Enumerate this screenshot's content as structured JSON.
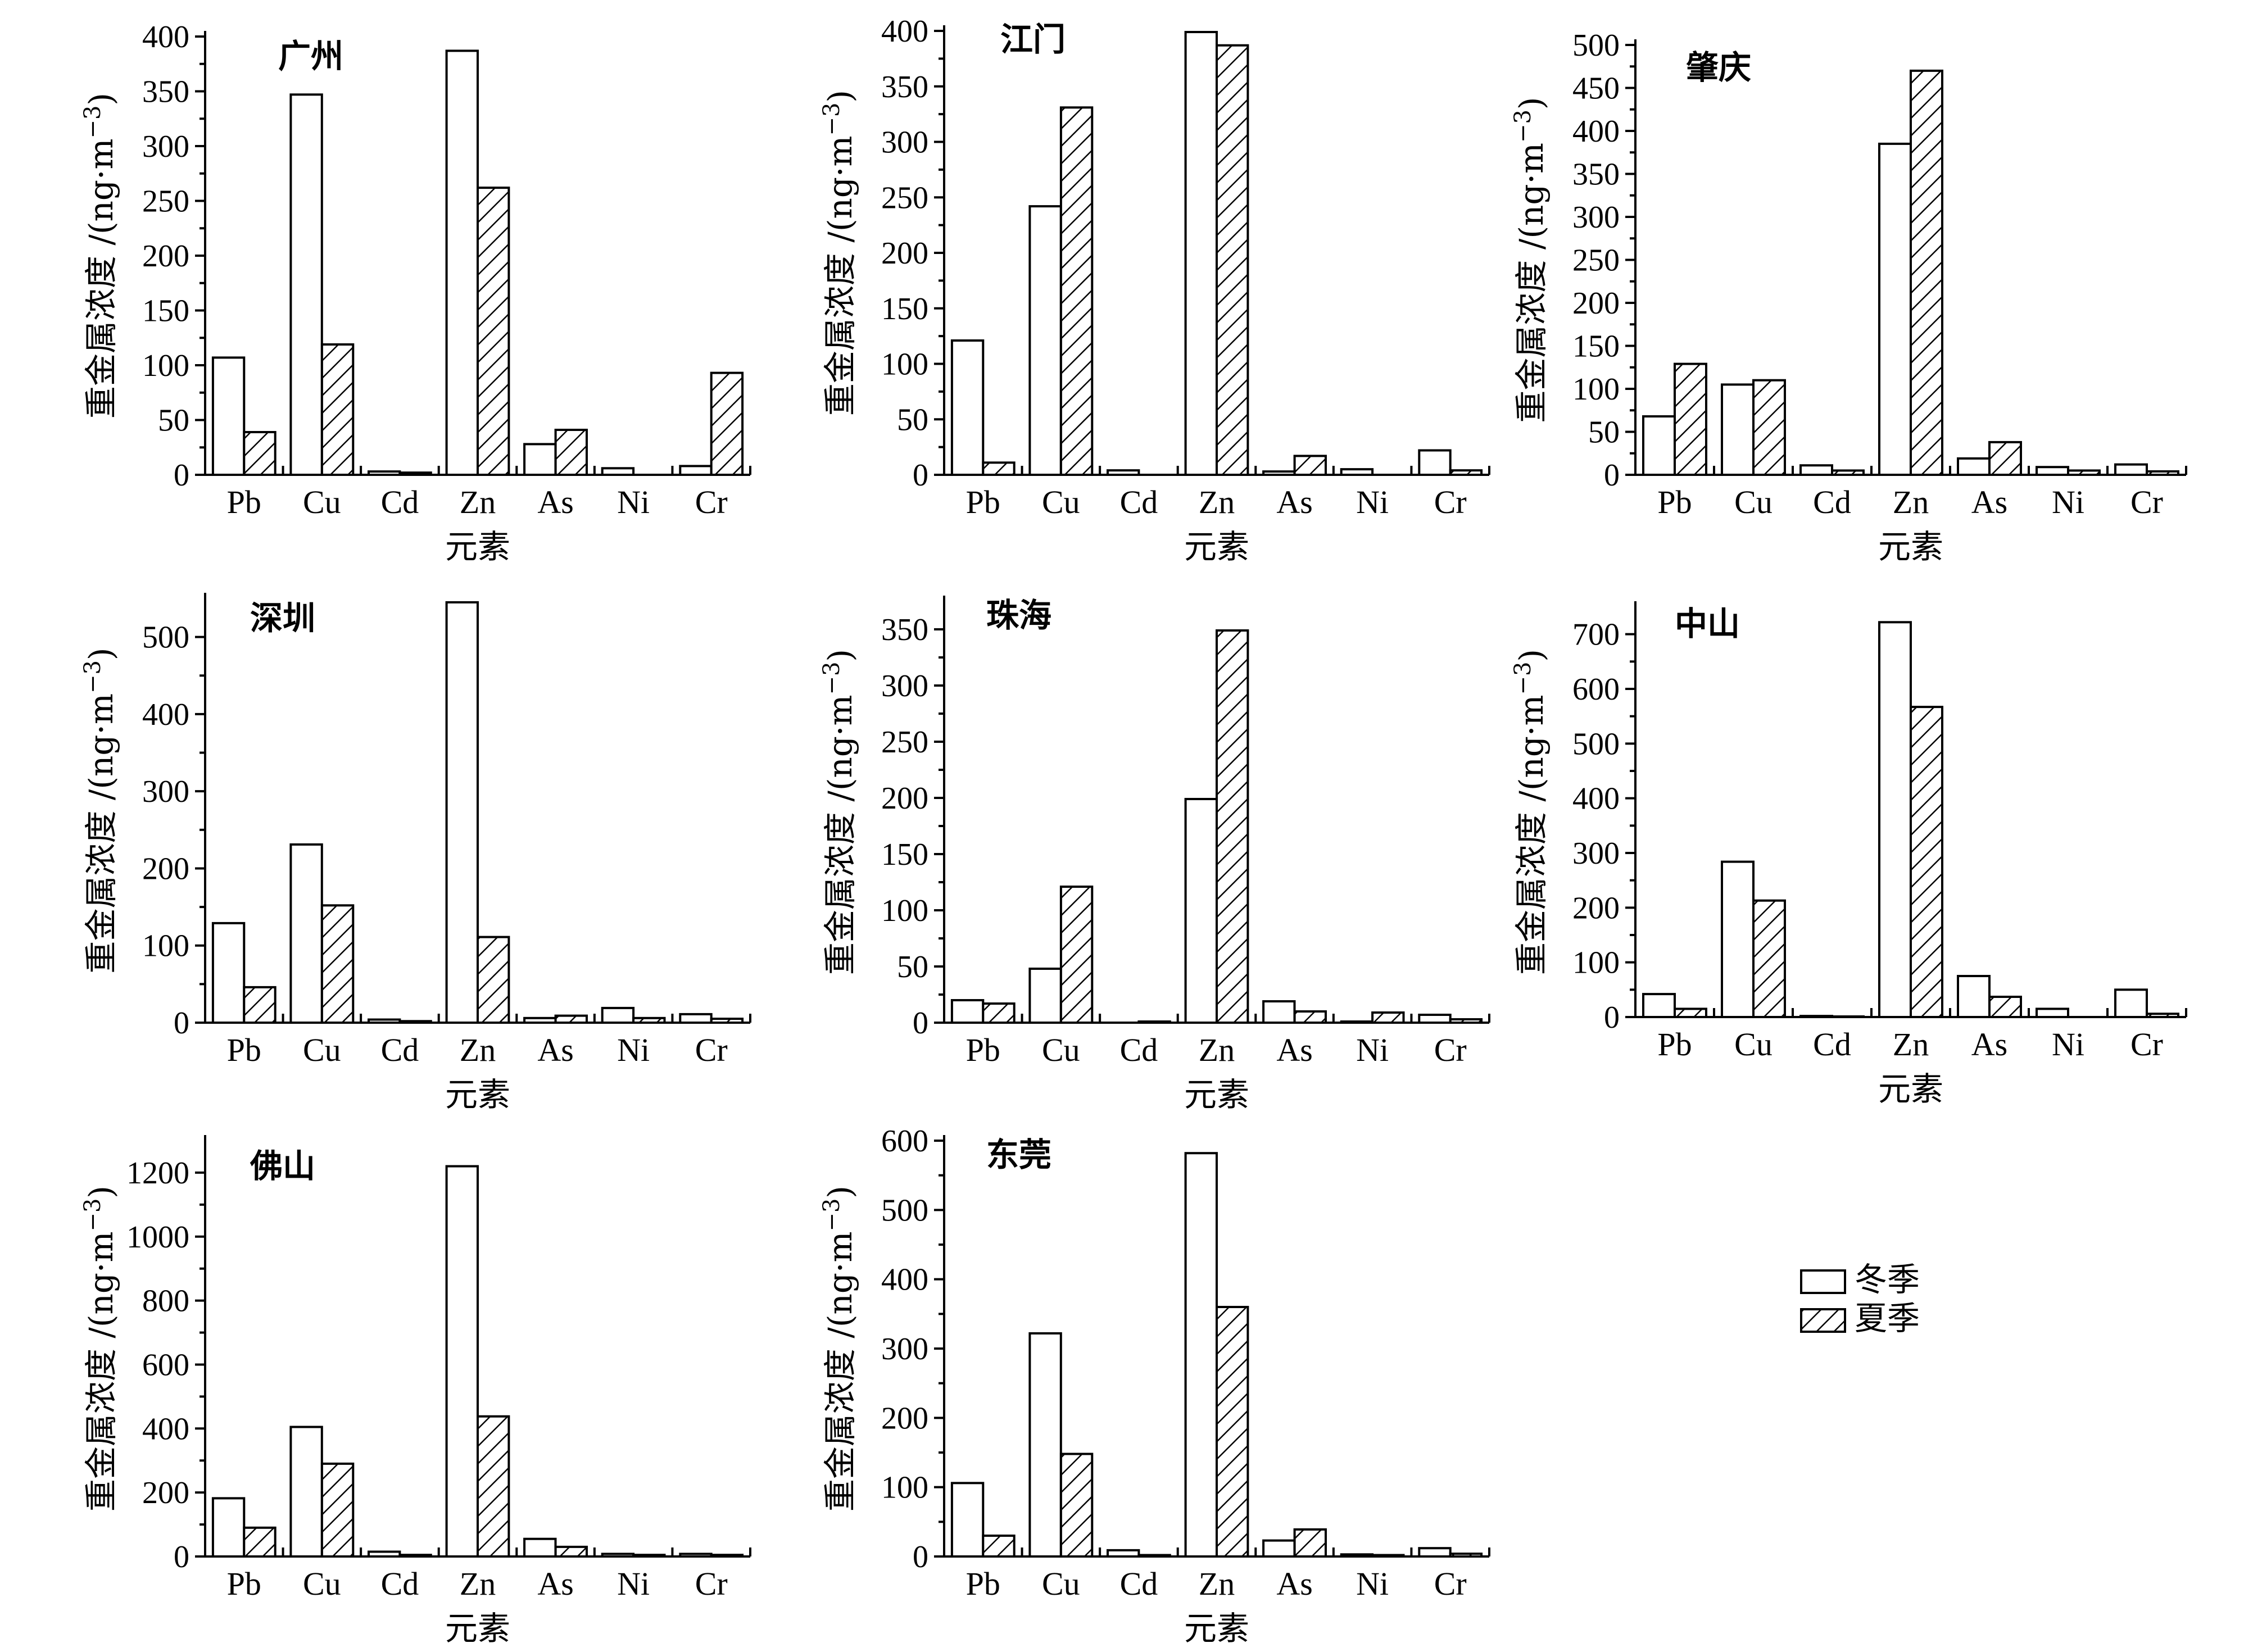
{
  "chart_data": [
    {
      "type": "bar",
      "title": "广州",
      "ymax": 400,
      "yticks": [
        0,
        50,
        100,
        150,
        200,
        250,
        300,
        350,
        400
      ],
      "categories": [
        "Pb",
        "Cu",
        "Cd",
        "Zn",
        "As",
        "Ni",
        "Cr"
      ],
      "series": [
        {
          "name": "冬季",
          "values": [
            107,
            347,
            3,
            387,
            28,
            6,
            8
          ]
        },
        {
          "name": "夏季",
          "values": [
            39,
            119,
            2,
            262,
            41,
            0,
            93
          ]
        }
      ],
      "xlabel": "元素",
      "ylabel": "重金属浓度 /(ng·m",
      "ylabel_sup": "−3",
      "ylabel_end": ")"
    },
    {
      "type": "bar",
      "title": "江门",
      "ymax": 400,
      "yticks": [
        0,
        50,
        100,
        150,
        200,
        250,
        300,
        350,
        400
      ],
      "categories": [
        "Pb",
        "Cu",
        "Cd",
        "Zn",
        "As",
        "Ni",
        "Cr"
      ],
      "series": [
        {
          "name": "冬季",
          "values": [
            121,
            242,
            4,
            399,
            3,
            5,
            22
          ]
        },
        {
          "name": "夏季",
          "values": [
            11,
            331,
            0,
            387,
            17,
            0,
            4
          ]
        }
      ],
      "xlabel": "元素",
      "ylabel": "重金属浓度 /(ng·m",
      "ylabel_sup": "−3",
      "ylabel_end": ")"
    },
    {
      "type": "bar",
      "title": "肇庆",
      "ymax": 500,
      "yticks": [
        0,
        50,
        100,
        150,
        200,
        250,
        300,
        350,
        400,
        450,
        500
      ],
      "categories": [
        "Pb",
        "Cu",
        "Cd",
        "Zn",
        "As",
        "Ni",
        "Cr"
      ],
      "series": [
        {
          "name": "冬季",
          "values": [
            68,
            105,
            11,
            385,
            19,
            9,
            12
          ]
        },
        {
          "name": "夏季",
          "values": [
            129,
            110,
            5,
            470,
            38,
            5,
            4
          ]
        }
      ],
      "xlabel": "元素",
      "ylabel": "重金属浓度 /(ng·m",
      "ylabel_sup": "−3",
      "ylabel_end": ")"
    },
    {
      "type": "bar",
      "title": "深圳",
      "ymax": 550,
      "yticks": [
        0,
        100,
        200,
        300,
        400,
        500
      ],
      "categories": [
        "Pb",
        "Cu",
        "Cd",
        "Zn",
        "As",
        "Ni",
        "Cr"
      ],
      "series": [
        {
          "name": "冬季",
          "values": [
            129,
            231,
            4,
            545,
            6,
            19,
            11
          ]
        },
        {
          "name": "夏季",
          "values": [
            46,
            152,
            2,
            111,
            9,
            6,
            5
          ]
        }
      ],
      "xlabel": "元素",
      "ylabel": "重金属浓度 /(ng·m",
      "ylabel_sup": "−3",
      "ylabel_end": ")"
    },
    {
      "type": "bar",
      "title": "珠海",
      "ymax": 375,
      "yticks": [
        0,
        50,
        100,
        150,
        200,
        250,
        300,
        350
      ],
      "categories": [
        "Pb",
        "Cu",
        "Cd",
        "Zn",
        "As",
        "Ni",
        "Cr"
      ],
      "series": [
        {
          "name": "冬季",
          "values": [
            20,
            48,
            0,
            199,
            19,
            1,
            7
          ]
        },
        {
          "name": "夏季",
          "values": [
            17,
            121,
            1,
            349,
            10,
            9,
            3
          ]
        }
      ],
      "xlabel": "元素",
      "ylabel": "重金属浓度 /(ng·m",
      "ylabel_sup": "−3",
      "ylabel_end": ")"
    },
    {
      "type": "bar",
      "title": "中山",
      "ymax": 750,
      "yticks": [
        0,
        100,
        200,
        300,
        400,
        500,
        600,
        700
      ],
      "categories": [
        "Pb",
        "Cu",
        "Cd",
        "Zn",
        "As",
        "Ni",
        "Cr"
      ],
      "series": [
        {
          "name": "冬季",
          "values": [
            42,
            284,
            2,
            722,
            75,
            15,
            50
          ]
        },
        {
          "name": "夏季",
          "values": [
            15,
            213,
            1,
            567,
            37,
            0,
            6
          ]
        }
      ],
      "xlabel": "元素",
      "ylabel": "重金属浓度 /(ng·m",
      "ylabel_sup": "−3",
      "ylabel_end": ")"
    },
    {
      "type": "bar",
      "title": "佛山",
      "ymax": 1300,
      "yticks": [
        0,
        200,
        400,
        600,
        800,
        1000,
        1200
      ],
      "categories": [
        "Pb",
        "Cu",
        "Cd",
        "Zn",
        "As",
        "Ni",
        "Cr"
      ],
      "series": [
        {
          "name": "冬季",
          "values": [
            182,
            405,
            15,
            1220,
            55,
            8,
            8
          ]
        },
        {
          "name": "夏季",
          "values": [
            90,
            290,
            5,
            438,
            30,
            5,
            5
          ]
        }
      ],
      "xlabel": "元素",
      "ylabel": "重金属浓度 /(ng·m",
      "ylabel_sup": "−3",
      "ylabel_end": ")"
    },
    {
      "type": "bar",
      "title": "东莞",
      "ymax": 600,
      "yticks": [
        0,
        100,
        200,
        300,
        400,
        500,
        600
      ],
      "categories": [
        "Pb",
        "Cu",
        "Cd",
        "Zn",
        "As",
        "Ni",
        "Cr"
      ],
      "series": [
        {
          "name": "冬季",
          "values": [
            106,
            322,
            9,
            582,
            23,
            3,
            12
          ]
        },
        {
          "name": "夏季",
          "values": [
            30,
            148,
            2,
            360,
            39,
            2,
            4
          ]
        }
      ],
      "xlabel": "元素",
      "ylabel": "重金属浓度 /(ng·m",
      "ylabel_sup": "−3",
      "ylabel_end": ")"
    }
  ],
  "legend": {
    "items": [
      "冬季",
      "夏季"
    ]
  }
}
